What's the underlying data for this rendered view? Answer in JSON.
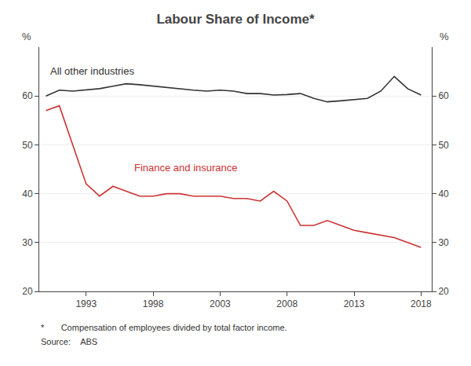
{
  "chart_data": {
    "type": "line",
    "title": "Labour Share of Income*",
    "y_label": "%",
    "y2_label": "%",
    "x": [
      1990,
      1991,
      1992,
      1993,
      1994,
      1995,
      1996,
      1997,
      1998,
      1999,
      2000,
      2001,
      2002,
      2003,
      2004,
      2005,
      2006,
      2007,
      2008,
      2009,
      2010,
      2011,
      2012,
      2013,
      2014,
      2015,
      2016,
      2017,
      2018
    ],
    "series": [
      {
        "name": "All other industries",
        "color": "#333333",
        "values": [
          60.0,
          61.2,
          61.0,
          61.2,
          61.5,
          62.0,
          62.5,
          62.3,
          62.0,
          61.8,
          61.5,
          61.2,
          61.0,
          61.2,
          61.0,
          60.5,
          60.5,
          60.2,
          60.3,
          60.5,
          59.5,
          58.8,
          59.0,
          59.2,
          59.5,
          61.0,
          64.0,
          61.5,
          60.2
        ]
      },
      {
        "name": "Finance and insurance",
        "color": "#cc3333",
        "values": [
          57.0,
          58.0,
          50.0,
          42.0,
          39.5,
          41.5,
          40.5,
          39.5,
          39.5,
          40.0,
          40.0,
          39.5,
          39.5,
          39.5,
          39.0,
          39.0,
          38.5,
          40.5,
          38.5,
          33.5,
          33.5,
          34.5,
          33.5,
          32.5,
          32.0,
          31.5,
          31.0,
          30.0,
          29.0
        ]
      }
    ],
    "annotations": [
      {
        "text": "All other industries",
        "x": 1990.2,
        "y": 63.5,
        "color": "#333333"
      },
      {
        "text": "Finance and insurance",
        "x": 1996.5,
        "y": 43.8,
        "color": "#cc3333"
      }
    ],
    "xlim": [
      1989.5,
      2018.8
    ],
    "xticks": [
      1993,
      1998,
      2003,
      2008,
      2013,
      2018
    ],
    "ylim": [
      20,
      70
    ],
    "yticks": [
      20,
      30,
      40,
      50,
      60
    ],
    "y2lim": [
      20,
      70
    ],
    "y2ticks": [
      20,
      30,
      40,
      50,
      60
    ],
    "grid": "y",
    "footnote": "*       Compensation of employees divided by total factor income.",
    "source": "Source:    ABS"
  }
}
